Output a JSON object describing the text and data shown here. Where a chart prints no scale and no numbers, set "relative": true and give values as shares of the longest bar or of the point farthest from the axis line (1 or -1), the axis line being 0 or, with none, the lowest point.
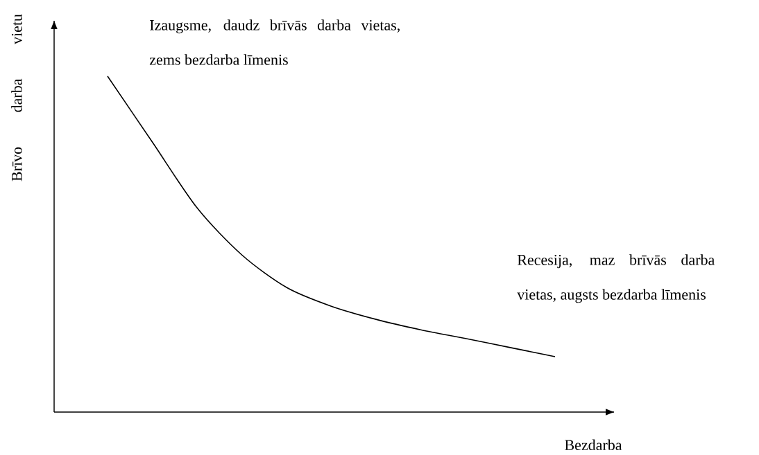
{
  "chart_data": {
    "type": "line",
    "relative": true,
    "xlabel": "Bezdarba",
    "ylabel": "Brīvo darba vietu",
    "annotations": [
      "Izaugsme, daudz brīvās darba vietas, zems bezdarba līmenis",
      "Recesija, maz brīvās darba vietas, augsts bezdarba līmenis"
    ],
    "categories": [
      null,
      null,
      null,
      null,
      null,
      null,
      null,
      null,
      null,
      null,
      null
    ],
    "series": [
      {
        "color": "#000000",
        "values": [
          1,
          0.804,
          0.608,
          0.468,
          0.371,
          0.315,
          0.276,
          0.245,
          0.219,
          0.192,
          0.165
        ]
      }
    ]
  }
}
